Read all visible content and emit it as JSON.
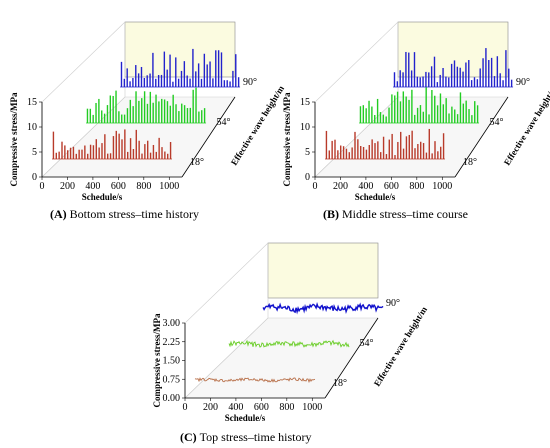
{
  "figure": {
    "panels": [
      {
        "letter": "(A)",
        "title": "Bottom stress–time history"
      },
      {
        "letter": "(B)",
        "title": "Middle stress–time course"
      },
      {
        "letter": "(C)",
        "title": "Top stress–time history"
      }
    ]
  },
  "chart_data": [
    {
      "type": "bar",
      "layout": "3d-waterfall",
      "xlabel": "Schedule/s",
      "ylabel": "Compressive stress/MPa",
      "zlabel": "Effective wave height/m",
      "xticks": [
        "0",
        "200",
        "400",
        "600",
        "800",
        "1000"
      ],
      "yticks": [
        "0",
        "5",
        "10",
        "15"
      ],
      "zticks": [
        "18°",
        "54°",
        "90°"
      ],
      "xlim": [
        0,
        1100
      ],
      "ylim": [
        0,
        15
      ],
      "series": [
        {
          "name": "18°",
          "color": "#b83a2a",
          "baseline": 0,
          "peak_range": [
            4,
            11
          ]
        },
        {
          "name": "54°",
          "color": "#22cc22",
          "baseline": 0,
          "peak_range": [
            7,
            13
          ]
        },
        {
          "name": "90°",
          "color": "#2222cc",
          "baseline": 0,
          "peak_range": [
            5,
            15
          ]
        }
      ]
    },
    {
      "type": "bar",
      "layout": "3d-waterfall",
      "xlabel": "Schedule/s",
      "ylabel": "Compressive stress/MPa",
      "zlabel": "Effective wave height/m",
      "xticks": [
        "0",
        "200",
        "400",
        "600",
        "800",
        "1000"
      ],
      "yticks": [
        "0",
        "5",
        "10",
        "15"
      ],
      "zticks": [
        "18°",
        "54°",
        "90°"
      ],
      "xlim": [
        0,
        1100
      ],
      "ylim": [
        0,
        15
      ],
      "series": [
        {
          "name": "18°",
          "color": "#b83a2a",
          "baseline": 0,
          "peak_range": [
            4,
            11
          ]
        },
        {
          "name": "54°",
          "color": "#22cc22",
          "baseline": 0,
          "peak_range": [
            7,
            13
          ]
        },
        {
          "name": "90°",
          "color": "#2222cc",
          "baseline": 0,
          "peak_range": [
            5,
            15
          ]
        }
      ]
    },
    {
      "type": "line",
      "layout": "3d-waterfall",
      "xlabel": "Schedule/s",
      "ylabel": "Compressive stress/MPa",
      "zlabel": "Effective wave height/m",
      "xticks": [
        "0",
        "200",
        "400",
        "600",
        "800",
        "1000"
      ],
      "yticks": [
        "0.00",
        "0.75",
        "1.50",
        "2.25",
        "3.00"
      ],
      "zticks": [
        "18°",
        "54°",
        "90°"
      ],
      "xlim": [
        0,
        1100
      ],
      "ylim": [
        0,
        3.0
      ],
      "series": [
        {
          "name": "18°",
          "color": "#b8704a",
          "baseline": 0.75,
          "amplitude": 0.15
        },
        {
          "name": "54°",
          "color": "#66cc22",
          "baseline": 1.8,
          "amplitude": 0.25
        },
        {
          "name": "90°",
          "color": "#1111cc",
          "baseline": 3.0,
          "amplitude": 0.3
        }
      ]
    }
  ]
}
